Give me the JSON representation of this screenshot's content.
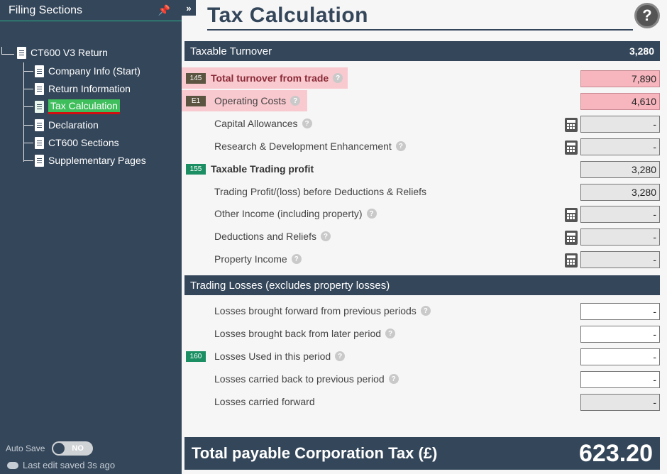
{
  "sidebar": {
    "title": "Filing Sections",
    "root": "CT600 V3 Return",
    "items": [
      {
        "label": "Company Info (Start)"
      },
      {
        "label": "Return Information"
      },
      {
        "label": "Tax Calculation"
      },
      {
        "label": "Declaration"
      },
      {
        "label": "CT600 Sections"
      },
      {
        "label": "Supplementary Pages"
      }
    ],
    "active_item": "Tax Calculation",
    "auto_save_label": "Auto Save",
    "auto_save_state": "NO",
    "last_saved": "Last edit saved 3s ago"
  },
  "collapse_label": "»",
  "page": {
    "title": "Tax Calculation",
    "help": "?"
  },
  "section1": {
    "label": "Taxable Turnover",
    "value": "3,280"
  },
  "rows1": [
    {
      "badge": "145",
      "label": "Total turnover from trade",
      "value": "7,890"
    },
    {
      "badge": "E1",
      "label": "Operating Costs",
      "value": "4,610"
    },
    {
      "label": "Capital Allowances",
      "value": "-"
    },
    {
      "label": "Research & Development Enhancement",
      "value": "-"
    },
    {
      "badge": "155",
      "label": "Taxable Trading profit",
      "value": "3,280"
    },
    {
      "label": "Trading Profit/(loss) before Deductions & Reliefs",
      "value": "3,280"
    },
    {
      "label": "Other Income (including property)",
      "value": "-"
    },
    {
      "label": "Deductions and Reliefs",
      "value": "-"
    },
    {
      "label": "Property Income",
      "value": "-"
    }
  ],
  "section2": {
    "label": "Trading Losses (excludes property losses)"
  },
  "rows2": [
    {
      "label": "Losses brought forward from previous periods",
      "value": "-"
    },
    {
      "label": "Losses brought back from later period",
      "value": "-"
    },
    {
      "badge": "160",
      "label": "Losses Used in this period",
      "value": "-"
    },
    {
      "label": "Losses carried back to previous period",
      "value": "-"
    },
    {
      "label": "Losses carried forward",
      "value": "-"
    }
  ],
  "total": {
    "label": "Total payable Corporation Tax (£)",
    "value": "623.20"
  },
  "colors": {
    "sidebar_bg": "#34465a",
    "active_item": "#3fbe5c",
    "badge_green": "#1b8f63",
    "highlight_pink": "#f7b6be"
  }
}
